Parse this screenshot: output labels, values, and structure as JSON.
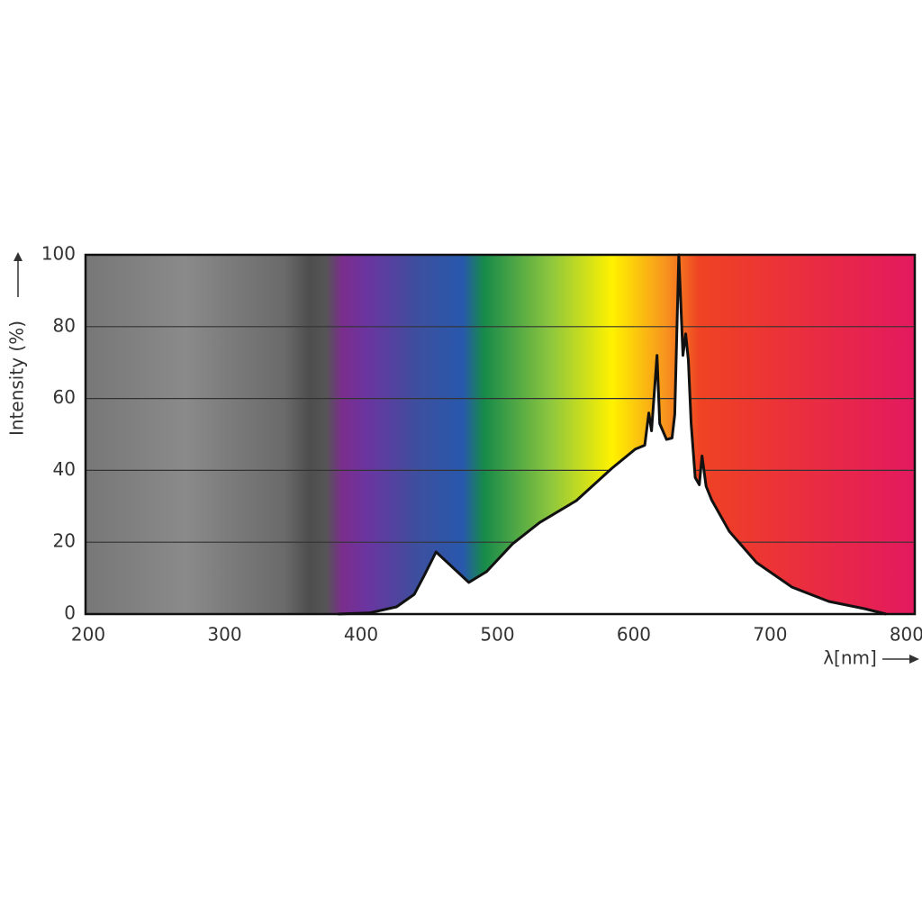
{
  "chart_data": {
    "type": "area",
    "x_label": "λ[nm]",
    "y_label": "Intensity (%)",
    "x": [
      383,
      406,
      426,
      439,
      446,
      455,
      479,
      492,
      511,
      531,
      558,
      584,
      601,
      608,
      611,
      613,
      617,
      619,
      624,
      628,
      630,
      633,
      636,
      638,
      640,
      642,
      645,
      648,
      650,
      653,
      657,
      670,
      690,
      716,
      743,
      769,
      785
    ],
    "values": [
      0,
      0.3,
      2,
      5.5,
      10.5,
      17.3,
      8.8,
      11.8,
      19.5,
      25.5,
      31.6,
      40.6,
      45.9,
      47,
      56,
      51,
      72,
      53,
      48.6,
      49,
      55.6,
      100,
      72,
      78,
      70.7,
      53,
      38,
      36,
      44,
      35.6,
      31.8,
      23,
      14.3,
      7.5,
      3.5,
      1.5,
      0
    ],
    "color": "#ffffff",
    "xlim": [
      198,
      806
    ],
    "ylim": [
      0,
      100
    ],
    "xticks": [
      200,
      300,
      400,
      500,
      600,
      700,
      800
    ],
    "yticks": [
      0,
      20,
      40,
      60,
      80,
      100
    ],
    "grid": true
  }
}
